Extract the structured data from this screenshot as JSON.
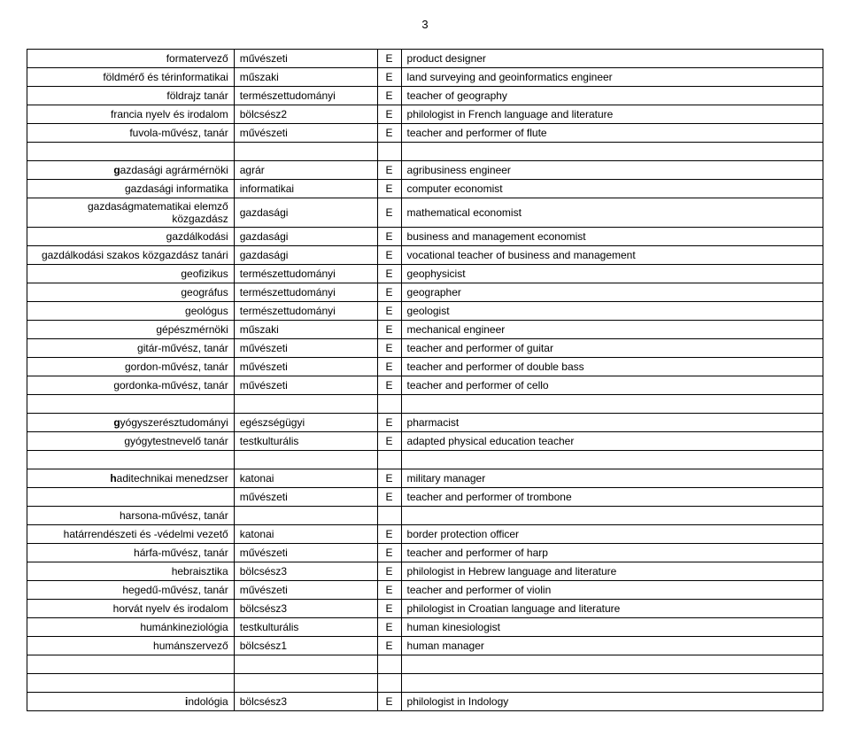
{
  "page_number": "3",
  "rows": [
    {
      "col1": "formatervező",
      "col2": "művészeti",
      "col3": "E",
      "col4": "product designer"
    },
    {
      "col1": "földmérő és térinformatikai",
      "col2": "műszaki",
      "col3": "E",
      "col4": "land surveying and geoinformatics engineer"
    },
    {
      "col1": "földrajz tanár",
      "col2": "természettudományi",
      "col3": "E",
      "col4": "teacher of geography"
    },
    {
      "col1": "francia nyelv és irodalom",
      "col2": "bölcsész2",
      "col3": "E",
      "col4": "philologist in French language and literature"
    },
    {
      "col1": "fuvola-művész, tanár",
      "col2": "művészeti",
      "col3": "E",
      "col4": "teacher and performer of flute"
    },
    {
      "empty": true
    },
    {
      "col1": "gazdasági agrármérnöki",
      "col2": "agrár",
      "col3": "E",
      "col4": "agribusiness engineer",
      "boldFirst": "g"
    },
    {
      "col1": "gazdasági informatika",
      "col2": "informatikai",
      "col3": "E",
      "col4": "computer economist"
    },
    {
      "col1": "gazdaságmatematikai elemző közgazdász",
      "col2": "gazdasági",
      "col3": "E",
      "col4": "mathematical economist"
    },
    {
      "col1": "gazdálkodási",
      "col2": "gazdasági",
      "col3": "E",
      "col4": "business and management economist"
    },
    {
      "col1": "gazdálkodási szakos közgazdász tanári",
      "col2": "gazdasági",
      "col3": "E",
      "col4": "vocational teacher of business and management"
    },
    {
      "col1": "geofizikus",
      "col2": "természettudományi",
      "col3": "E",
      "col4": "geophysicist"
    },
    {
      "col1": "geográfus",
      "col2": "természettudományi",
      "col3": "E",
      "col4": "geographer"
    },
    {
      "col1": "geológus",
      "col2": "természettudományi",
      "col3": "E",
      "col4": "geologist"
    },
    {
      "col1": "gépészmérnöki",
      "col2": "műszaki",
      "col3": "E",
      "col4": "mechanical engineer"
    },
    {
      "col1": "gitár-művész, tanár",
      "col2": "művészeti",
      "col3": "E",
      "col4": "teacher and performer of guitar"
    },
    {
      "col1": "gordon-művész, tanár",
      "col2": "művészeti",
      "col3": "E",
      "col4": "teacher and performer of double bass"
    },
    {
      "col1": "gordonka-művész, tanár",
      "col2": "művészeti",
      "col3": "E",
      "col4": "teacher and performer of cello"
    },
    {
      "empty": true
    },
    {
      "col1": "gyógyszerésztudományi",
      "col2": "egészségügyi",
      "col3": "E",
      "col4": "pharmacist",
      "boldFirst": "g"
    },
    {
      "col1": "gyógytestnevelő tanár",
      "col2": "testkulturális",
      "col3": "E",
      "col4": "adapted physical education teacher"
    },
    {
      "empty": true
    },
    {
      "col1": "haditechnikai menedzser",
      "col2": "katonai",
      "col3": "E",
      "col4": "military manager",
      "boldFirst": "h"
    },
    {
      "col1": "",
      "col2": "művészeti",
      "col3": "E",
      "col4": "teacher and performer of trombone"
    },
    {
      "col1": "harsona-művész, tanár",
      "col2": "",
      "col3": "",
      "col4": ""
    },
    {
      "col1": "határrendészeti és -védelmi vezető",
      "col2": "katonai",
      "col3": "E",
      "col4": "border protection officer"
    },
    {
      "col1": "hárfa-művész, tanár",
      "col2": "művészeti",
      "col3": "E",
      "col4": "teacher and performer of harp"
    },
    {
      "col1": "hebraisztika",
      "col2": "bölcsész3",
      "col3": "E",
      "col4": "philologist in Hebrew language and literature"
    },
    {
      "col1": "hegedű-művész, tanár",
      "col2": "művészeti",
      "col3": "E",
      "col4": "teacher and performer of violin"
    },
    {
      "col1": "horvát nyelv és irodalom",
      "col2": "bölcsész3",
      "col3": "E",
      "col4": "philologist in Croatian language and literature"
    },
    {
      "col1": "humánkineziológia",
      "col2": "testkulturális",
      "col3": "E",
      "col4": "human kinesiologist"
    },
    {
      "col1": "humánszervező",
      "col2": "bölcsész1",
      "col3": "E",
      "col4": "human manager"
    },
    {
      "empty": true
    },
    {
      "empty": true
    },
    {
      "col1": "indológia",
      "col2": "bölcsész3",
      "col3": "E",
      "col4": "philologist in Indology",
      "boldFirst": "i"
    }
  ]
}
